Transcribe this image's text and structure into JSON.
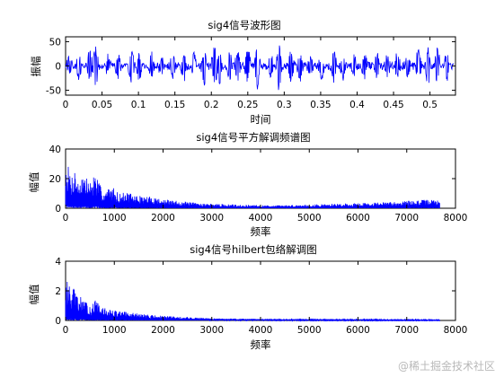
{
  "chart_data": [
    {
      "type": "line",
      "title": "sig4信号波形图",
      "xlabel": "时间",
      "ylabel": "振幅",
      "xlim": [
        0,
        0.535
      ],
      "ylim": [
        -60,
        60
      ],
      "xticks": [
        0,
        0.05,
        0.1,
        0.15,
        0.2,
        0.25,
        0.3,
        0.35,
        0.4,
        0.45,
        0.5
      ],
      "xtick_labels": [
        "0",
        "0.05",
        "0.1",
        "0.15",
        "0.2",
        "0.25",
        "0.3",
        "0.35",
        "0.4",
        "0.45",
        "0.5"
      ],
      "yticks": [
        -50,
        0,
        50
      ],
      "ytick_labels": [
        "-50",
        "0",
        "50"
      ],
      "grid": false,
      "color": "#0000ff",
      "series": [
        {
          "x": [
            0.005,
            0.018,
            0.033,
            0.041,
            0.058,
            0.072,
            0.09,
            0.101,
            0.118,
            0.131,
            0.147,
            0.162,
            0.176,
            0.19,
            0.204,
            0.211,
            0.225,
            0.236,
            0.25,
            0.263,
            0.281,
            0.293,
            0.309,
            0.322,
            0.336,
            0.351,
            0.368,
            0.381,
            0.396,
            0.41,
            0.427,
            0.441,
            0.455,
            0.469,
            0.484,
            0.497,
            0.51,
            0.523
          ],
          "y": [
            18,
            -22,
            30,
            -45,
            20,
            -28,
            35,
            -30,
            24,
            -20,
            28,
            -32,
            22,
            -38,
            44,
            -40,
            30,
            -35,
            38,
            -42,
            26,
            -50,
            33,
            -30,
            25,
            -28,
            36,
            -24,
            22,
            -30,
            28,
            -22,
            26,
            -20,
            34,
            -42,
            38,
            -30
          ]
        }
      ]
    },
    {
      "type": "line",
      "title": "sig4信号平方解调频谱图",
      "xlabel": "频率",
      "ylabel": "幅值",
      "xlim": [
        0,
        8000
      ],
      "ylim": [
        0,
        40
      ],
      "xticks": [
        0,
        1000,
        2000,
        3000,
        4000,
        5000,
        6000,
        7000,
        8000
      ],
      "xtick_labels": [
        "0",
        "1000",
        "2000",
        "3000",
        "4000",
        "5000",
        "6000",
        "7000",
        "8000"
      ],
      "yticks": [
        0,
        20,
        40
      ],
      "ytick_labels": [
        "0",
        "20",
        "40"
      ],
      "grid": false,
      "color": "#0000ff",
      "series": [
        {
          "x": [
            40,
            120,
            190,
            260,
            330,
            420,
            520,
            600,
            700,
            800,
            950,
            1100,
            1250,
            1400,
            1600,
            1800,
            2000,
            2300,
            2600,
            3000,
            3500,
            4000,
            4500,
            5000,
            5500,
            6000,
            6500,
            7000,
            7500,
            7680
          ],
          "y": [
            30,
            22,
            28,
            17,
            24,
            21,
            18,
            25,
            16,
            12,
            15,
            10,
            11,
            9,
            8,
            8,
            6,
            5,
            4,
            3,
            2.5,
            2,
            2,
            2.5,
            3,
            3.5,
            4,
            5,
            6,
            5
          ]
        }
      ]
    },
    {
      "type": "line",
      "title": "sig4信号hilbert包络解调图",
      "xlabel": "频率",
      "ylabel": "幅值",
      "xlim": [
        0,
        8000
      ],
      "ylim": [
        0,
        4
      ],
      "xticks": [
        0,
        1000,
        2000,
        3000,
        4000,
        5000,
        6000,
        7000,
        8000
      ],
      "xtick_labels": [
        "0",
        "1000",
        "2000",
        "3000",
        "4000",
        "5000",
        "6000",
        "7000",
        "8000"
      ],
      "yticks": [
        0,
        2,
        4
      ],
      "ytick_labels": [
        "0",
        "2",
        "4"
      ],
      "grid": false,
      "color": "#0000ff",
      "series": [
        {
          "x": [
            40,
            120,
            190,
            260,
            330,
            420,
            520,
            620,
            720,
            850,
            1000,
            1200,
            1400,
            1700,
            2000,
            2400,
            3000,
            4000,
            5000,
            6000,
            7000,
            7680
          ],
          "y": [
            2.7,
            1.9,
            2.3,
            1.4,
            1.7,
            1.2,
            1.0,
            1.4,
            0.9,
            0.8,
            0.7,
            0.6,
            0.5,
            0.4,
            0.3,
            0.25,
            0.15,
            0.1,
            0.08,
            0.08,
            0.06,
            0.05
          ]
        }
      ]
    }
  ],
  "watermark": "@稀土掘金技术社区"
}
